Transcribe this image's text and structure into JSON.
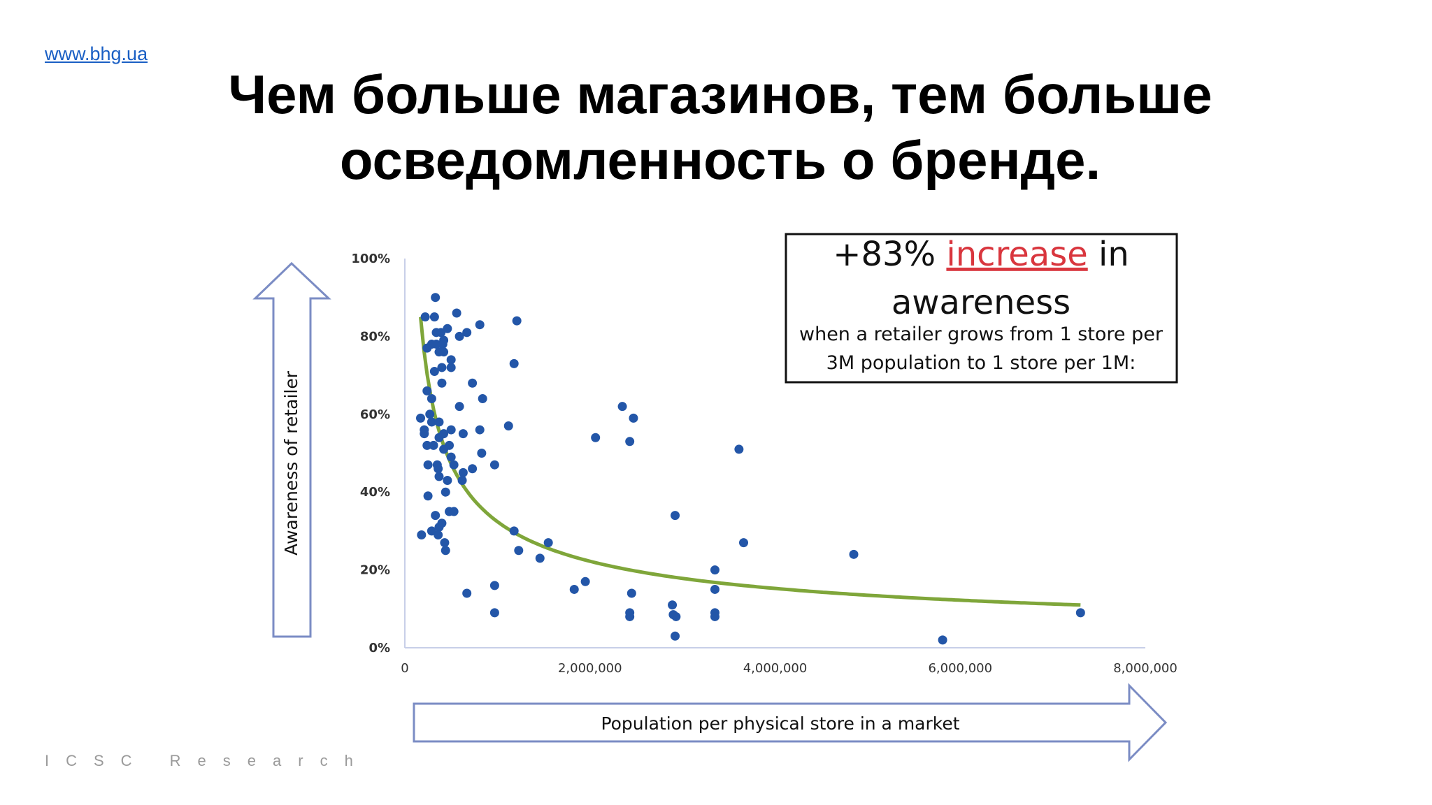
{
  "header": {
    "link": "www.bhg.ua",
    "title_line1": "Чем больше магазинов, тем больше",
    "title_line2": "осведомленность о бренде."
  },
  "footer": {
    "source": "ICSC Research"
  },
  "callout": {
    "prefix": "+83% ",
    "highlight": "increase",
    "suffix": " in",
    "line2": "awareness",
    "line3": "when a retailer grows from 1 store per",
    "line4": "3M population to 1 store per 1M:",
    "highlight_color": "#d9363e"
  },
  "chart_data": {
    "type": "scatter",
    "title": "",
    "xlabel": "Population per physical store in a market",
    "ylabel": "Awareness of retailer",
    "xlim": [
      0,
      8000000
    ],
    "ylim": [
      0,
      100
    ],
    "x_ticks": [
      "0",
      "2,000,000",
      "4,000,000",
      "6,000,000",
      "8,000,000"
    ],
    "y_ticks": [
      "0%",
      "20%",
      "40%",
      "60%",
      "80%",
      "100%"
    ],
    "point_color": "#2356a8",
    "trendline": {
      "type": "power",
      "a": 32.4,
      "b": -0.544,
      "x_unit": "millions",
      "x_range_millions": [
        0.17,
        7.3
      ],
      "color": "#7fa63a"
    },
    "points_millions_percent": [
      [
        0.33,
        90
      ],
      [
        0.22,
        85
      ],
      [
        0.32,
        85
      ],
      [
        0.56,
        86
      ],
      [
        0.81,
        83
      ],
      [
        1.21,
        84
      ],
      [
        0.46,
        82
      ],
      [
        0.34,
        81
      ],
      [
        0.39,
        81
      ],
      [
        0.42,
        79
      ],
      [
        0.29,
        78
      ],
      [
        0.34,
        78
      ],
      [
        0.41,
        78
      ],
      [
        0.59,
        80
      ],
      [
        0.67,
        81
      ],
      [
        0.24,
        77
      ],
      [
        0.37,
        76
      ],
      [
        0.42,
        76
      ],
      [
        0.5,
        74
      ],
      [
        0.32,
        71
      ],
      [
        0.4,
        72
      ],
      [
        0.5,
        72
      ],
      [
        1.18,
        73
      ],
      [
        0.4,
        68
      ],
      [
        0.73,
        68
      ],
      [
        0.24,
        66
      ],
      [
        0.29,
        64
      ],
      [
        0.84,
        64
      ],
      [
        0.59,
        62
      ],
      [
        2.35,
        62
      ],
      [
        2.47,
        59
      ],
      [
        0.17,
        59
      ],
      [
        0.27,
        60
      ],
      [
        0.29,
        58
      ],
      [
        0.37,
        58
      ],
      [
        0.21,
        56
      ],
      [
        0.21,
        55
      ],
      [
        0.5,
        56
      ],
      [
        0.81,
        56
      ],
      [
        0.63,
        55
      ],
      [
        1.12,
        57
      ],
      [
        0.37,
        54
      ],
      [
        0.42,
        55
      ],
      [
        2.06,
        54
      ],
      [
        2.43,
        53
      ],
      [
        0.24,
        52
      ],
      [
        0.31,
        52
      ],
      [
        0.48,
        52
      ],
      [
        0.42,
        51
      ],
      [
        3.61,
        51
      ],
      [
        0.83,
        50
      ],
      [
        0.5,
        49
      ],
      [
        0.25,
        47
      ],
      [
        0.35,
        47
      ],
      [
        0.53,
        47
      ],
      [
        0.97,
        47
      ],
      [
        0.36,
        46
      ],
      [
        0.73,
        46
      ],
      [
        0.63,
        45
      ],
      [
        0.62,
        43
      ],
      [
        0.37,
        44
      ],
      [
        0.46,
        43
      ],
      [
        0.25,
        39
      ],
      [
        0.44,
        40
      ],
      [
        0.33,
        34
      ],
      [
        0.4,
        32
      ],
      [
        0.37,
        31
      ],
      [
        0.48,
        35
      ],
      [
        0.53,
        35
      ],
      [
        2.92,
        34
      ],
      [
        0.18,
        29
      ],
      [
        0.29,
        30
      ],
      [
        0.36,
        29
      ],
      [
        0.43,
        27
      ],
      [
        0.44,
        25
      ],
      [
        1.18,
        30
      ],
      [
        1.23,
        25
      ],
      [
        1.55,
        27
      ],
      [
        1.46,
        23
      ],
      [
        3.66,
        27
      ],
      [
        4.85,
        24
      ],
      [
        3.35,
        20
      ],
      [
        0.67,
        14
      ],
      [
        0.97,
        16
      ],
      [
        1.83,
        15
      ],
      [
        1.95,
        17
      ],
      [
        2.45,
        14
      ],
      [
        3.35,
        15
      ],
      [
        0.97,
        9
      ],
      [
        2.43,
        9
      ],
      [
        2.43,
        8
      ],
      [
        2.89,
        11
      ],
      [
        2.9,
        8.5
      ],
      [
        2.93,
        8
      ],
      [
        3.35,
        9
      ],
      [
        3.35,
        8
      ],
      [
        2.92,
        3
      ],
      [
        5.81,
        2
      ],
      [
        7.3,
        9
      ]
    ]
  }
}
